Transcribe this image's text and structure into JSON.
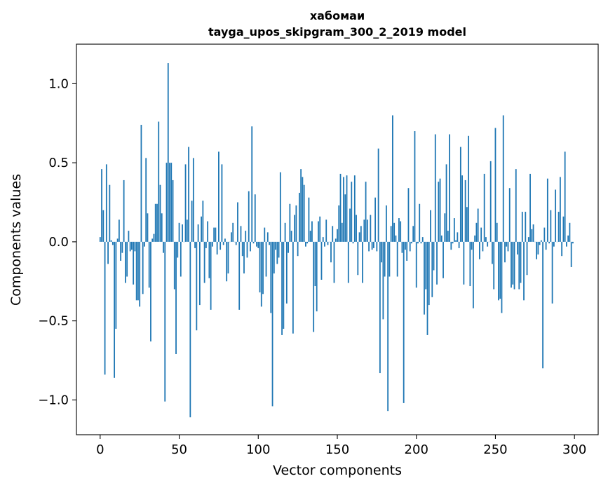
{
  "chart_data": {
    "type": "bar",
    "title": "хабомаи",
    "subtitle": "tayga_upos_skipgram_300_2_2019 model",
    "xlabel": "Vector components",
    "ylabel": "Components values",
    "xlim": [
      -15,
      315
    ],
    "ylim": [
      -1.22,
      1.25
    ],
    "xticks": [
      0,
      50,
      100,
      150,
      200,
      250,
      300
    ],
    "yticks": [
      -1.0,
      -0.5,
      0.0,
      0.5,
      1.0
    ],
    "xtick_labels": [
      "0",
      "50",
      "100",
      "150",
      "200",
      "250",
      "300"
    ],
    "ytick_labels": [
      "−1.0",
      "−0.5",
      "0.0",
      "0.5",
      "1.0"
    ],
    "bar_color": "#1f77b4",
    "grid": false,
    "legend": "none",
    "x_start": 0,
    "values": [
      0.03,
      0.46,
      0.2,
      -0.84,
      0.49,
      -0.14,
      0.36,
      0.01,
      -0.02,
      -0.86,
      -0.55,
      0.02,
      0.14,
      -0.12,
      -0.07,
      0.39,
      -0.26,
      -0.22,
      0.07,
      -0.06,
      -0.05,
      -0.27,
      -0.06,
      -0.37,
      -0.37,
      -0.41,
      0.74,
      -0.33,
      -0.03,
      0.53,
      0.18,
      -0.29,
      -0.63,
      0.02,
      0.05,
      0.24,
      0.24,
      0.76,
      0.36,
      0.18,
      -0.07,
      -1.01,
      0.5,
      1.13,
      0.5,
      0.5,
      0.39,
      -0.3,
      -0.71,
      -0.1,
      0.12,
      -0.22,
      0.11,
      0.0,
      0.49,
      0.14,
      0.6,
      -1.11,
      0.26,
      0.53,
      -0.04,
      -0.56,
      0.11,
      -0.4,
      0.16,
      0.26,
      -0.26,
      -0.04,
      0.13,
      -0.23,
      -0.43,
      -0.03,
      0.09,
      0.09,
      -0.08,
      0.57,
      -0.05,
      0.49,
      -0.02,
      0.02,
      -0.25,
      -0.2,
      0.0,
      0.06,
      0.12,
      0.0,
      -0.02,
      0.25,
      -0.43,
      0.1,
      -0.09,
      -0.2,
      0.07,
      -0.1,
      0.32,
      -0.06,
      0.73,
      -0.01,
      0.3,
      -0.03,
      -0.04,
      -0.32,
      -0.41,
      -0.33,
      0.09,
      -0.22,
      0.06,
      -0.02,
      -0.45,
      -1.04,
      -0.2,
      -0.05,
      -0.14,
      -0.1,
      0.44,
      -0.59,
      -0.55,
      0.12,
      -0.39,
      -0.07,
      0.24,
      0.07,
      -0.58,
      0.17,
      0.23,
      -0.09,
      0.31,
      0.46,
      0.41,
      0.36,
      -0.03,
      -0.01,
      0.28,
      0.07,
      0.13,
      -0.57,
      -0.28,
      -0.44,
      0.13,
      0.16,
      -0.24,
      0.03,
      -0.03,
      0.14,
      -0.02,
      0.0,
      -0.13,
      0.1,
      -0.26,
      0.02,
      0.08,
      0.23,
      0.43,
      0.12,
      0.41,
      0.3,
      0.42,
      -0.26,
      0.21,
      0.38,
      -0.01,
      0.42,
      0.17,
      -0.21,
      0.06,
      0.1,
      -0.26,
      0.14,
      0.38,
      0.14,
      -0.06,
      0.17,
      -0.05,
      -0.04,
      0.28,
      -0.06,
      0.59,
      -0.83,
      -0.13,
      -0.49,
      -0.22,
      0.23,
      -1.07,
      -0.22,
      0.1,
      0.8,
      0.12,
      0.04,
      -0.22,
      0.15,
      0.13,
      -0.07,
      -1.02,
      -0.05,
      -0.12,
      0.34,
      -0.06,
      -0.01,
      0.1,
      0.7,
      -0.29,
      -0.01,
      0.24,
      -0.01,
      0.03,
      -0.46,
      -0.3,
      -0.59,
      -0.4,
      0.2,
      -0.35,
      -0.18,
      0.68,
      -0.27,
      0.38,
      0.4,
      0.04,
      -0.23,
      0.18,
      0.49,
      0.07,
      0.68,
      -0.05,
      -0.01,
      0.15,
      0.01,
      0.06,
      -0.04,
      0.6,
      0.42,
      -0.27,
      0.39,
      0.22,
      0.67,
      -0.28,
      -0.05,
      -0.42,
      0.04,
      0.12,
      0.21,
      -0.11,
      0.09,
      -0.06,
      0.43,
      0.03,
      -0.03,
      0.0,
      0.51,
      -0.14,
      -0.3,
      0.72,
      0.12,
      -0.37,
      -0.36,
      -0.45,
      0.8,
      -0.13,
      -0.03,
      -0.06,
      0.34,
      -0.29,
      -0.27,
      -0.3,
      0.46,
      -0.08,
      -0.3,
      -0.26,
      0.19,
      -0.37,
      0.19,
      -0.21,
      0.03,
      0.43,
      0.08,
      0.11,
      0.0,
      -0.11,
      -0.08,
      -0.02,
      0.01,
      -0.8,
      0.09,
      -0.05,
      0.4,
      -0.01,
      0.2,
      -0.39,
      -0.03,
      0.33,
      0.0,
      0.19,
      0.41,
      -0.09,
      0.16,
      0.57,
      -0.03,
      0.04,
      0.12,
      -0.16,
      -0.01
    ]
  }
}
